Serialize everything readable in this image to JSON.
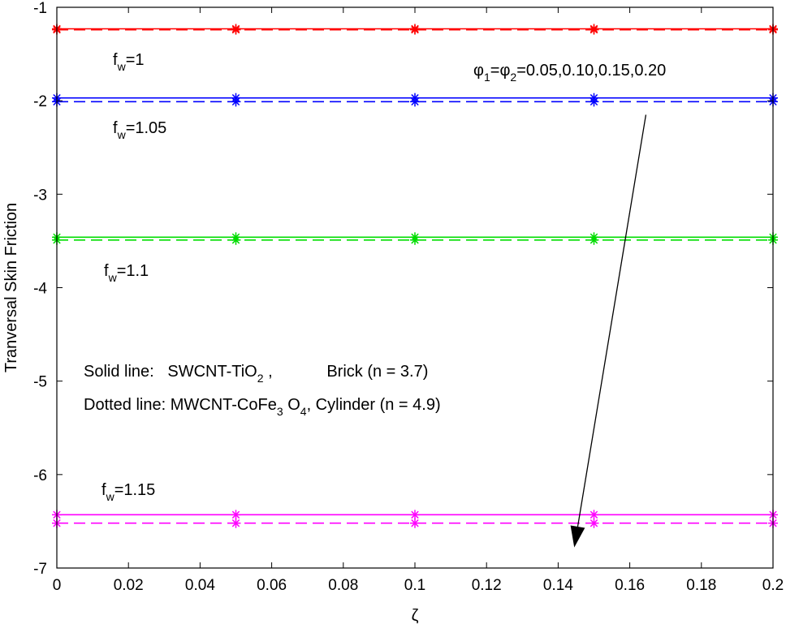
{
  "chart_data": {
    "type": "line",
    "title": "",
    "xlabel": "ζ",
    "ylabel": "Tranversal Skin Friction",
    "xlim": [
      0,
      0.2
    ],
    "ylim": [
      -7,
      -1
    ],
    "xticks": [
      0,
      0.02,
      0.04,
      0.06,
      0.08,
      0.1,
      0.12,
      0.14,
      0.16,
      0.18,
      0.2
    ],
    "xtick_labels": [
      "0",
      "0.02",
      "0.04",
      "0.06",
      "0.08",
      "0.1",
      "0.12",
      "0.14",
      "0.16",
      "0.18",
      "0.2"
    ],
    "yticks": [
      -1,
      -2,
      -3,
      -4,
      -5,
      -6,
      -7
    ],
    "ytick_labels": [
      "-1",
      "-2",
      "-3",
      "-4",
      "-5",
      "-6",
      "-7"
    ],
    "grid": false,
    "x": [
      0,
      0.05,
      0.1,
      0.15,
      0.2
    ],
    "series": [
      {
        "label": "fw=1",
        "line_style": "solid",
        "color": "#ff0000",
        "values": [
          -1.23,
          -1.23,
          -1.23,
          -1.23,
          -1.23
        ]
      },
      {
        "label": "fw=1",
        "line_style": "dashed",
        "color": "#ff0000",
        "values": [
          -1.24,
          -1.24,
          -1.24,
          -1.24,
          -1.24
        ]
      },
      {
        "label": "fw=1.05",
        "line_style": "solid",
        "color": "#0000ff",
        "values": [
          -1.97,
          -1.97,
          -1.97,
          -1.97,
          -1.97
        ]
      },
      {
        "label": "fw=1.05",
        "line_style": "dashed",
        "color": "#0000ff",
        "values": [
          -2.01,
          -2.01,
          -2.01,
          -2.01,
          -2.01
        ]
      },
      {
        "label": "fw=1.1",
        "line_style": "solid",
        "color": "#00dd00",
        "values": [
          -3.46,
          -3.46,
          -3.46,
          -3.46,
          -3.46
        ]
      },
      {
        "label": "fw=1.1",
        "line_style": "dashed",
        "color": "#00dd00",
        "values": [
          -3.49,
          -3.49,
          -3.49,
          -3.49,
          -3.49
        ]
      },
      {
        "label": "fw=1.15",
        "line_style": "solid",
        "color": "#ff00ff",
        "values": [
          -6.43,
          -6.43,
          -6.43,
          -6.43,
          -6.43
        ]
      },
      {
        "label": "fw=1.15",
        "line_style": "dashed",
        "color": "#ff00ff",
        "values": [
          -6.52,
          -6.52,
          -6.52,
          -6.52,
          -6.52
        ]
      }
    ],
    "annotations": {
      "fw_1": {
        "main": "f",
        "sub": "w",
        "rest": "=1"
      },
      "fw_105": {
        "main": "f",
        "sub": "w",
        "rest": "=1.05"
      },
      "fw_11": {
        "main": "f",
        "sub": "w",
        "rest": "=1.1"
      },
      "fw_115": {
        "main": "f",
        "sub": "w",
        "rest": "=1.15"
      },
      "phi": {
        "a": "φ",
        "sub1": "1",
        "eq": "=φ",
        "sub2": "2",
        "rest": "=0.05,0.10,0.15,0.20"
      },
      "arrow": {
        "from": [
          0.1645,
          -2.15
        ],
        "to": [
          0.1445,
          -6.78
        ]
      },
      "legend_solid": {
        "prefix": "Solid line:   SWCNT-TiO",
        "sub": "2",
        "suffix": " ,            Brick (n = 3.7)"
      },
      "legend_dotted": {
        "prefix": "Dotted line: MWCNT-CoFe",
        "sub1": "3",
        "mid": " O",
        "sub2": "4",
        "suffix": ", Cylinder (n = 4.9)"
      }
    }
  }
}
